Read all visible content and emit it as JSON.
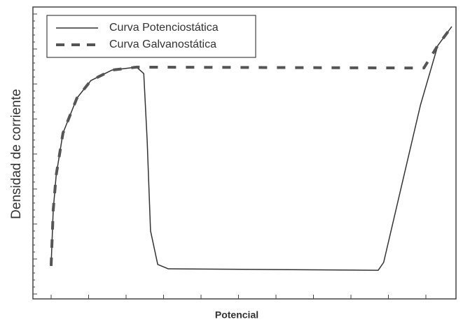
{
  "chart_data": {
    "type": "line",
    "x_label": "Potencial",
    "y_label": "Densidad de corriente",
    "xlim": [
      0,
      100
    ],
    "ylim": [
      0,
      100
    ],
    "legend": "upper left",
    "series": [
      {
        "name": "Curva Potenciostática",
        "color": "#333333",
        "style": "solid",
        "x": [
          4.3,
          4.8,
          5.5,
          7.1,
          10.4,
          13.7,
          18.7,
          24.5,
          26.2,
          27.0,
          27.8,
          29.5,
          32.0,
          81.6,
          82.9,
          91.6,
          95.7,
          99.0
        ],
        "values": [
          11.3,
          30.5,
          42.4,
          56.8,
          68.8,
          74.8,
          78.4,
          79.4,
          77.2,
          54.4,
          23.3,
          11.8,
          10.3,
          9.8,
          12.5,
          66.4,
          86.8,
          93.3
        ]
      },
      {
        "name": "Curva Galvanostática",
        "color": "#555555",
        "style": "dashed",
        "x": [
          4.3,
          4.8,
          5.5,
          7.1,
          10.4,
          13.7,
          18.7,
          24.5,
          92.4,
          95.7,
          99.0
        ],
        "values": [
          11.3,
          30.5,
          42.4,
          56.8,
          68.8,
          74.8,
          78.4,
          79.4,
          79.1,
          86.8,
          93.3
        ]
      }
    ]
  }
}
